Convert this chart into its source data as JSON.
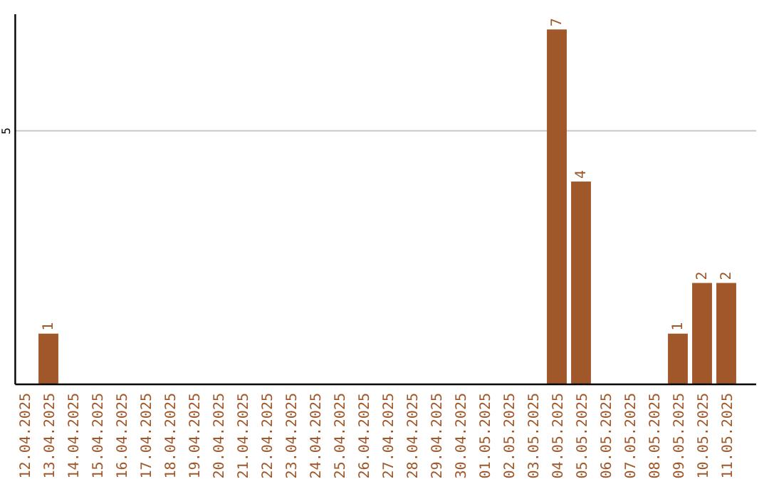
{
  "chart_data": {
    "type": "bar",
    "categories": [
      "12.04.2025",
      "13.04.2025",
      "14.04.2025",
      "15.04.2025",
      "16.04.2025",
      "17.04.2025",
      "18.04.2025",
      "19.04.2025",
      "20.04.2025",
      "21.04.2025",
      "22.04.2025",
      "23.04.2025",
      "24.04.2025",
      "25.04.2025",
      "26.04.2025",
      "27.04.2025",
      "28.04.2025",
      "29.04.2025",
      "30.04.2025",
      "01.05.2025",
      "02.05.2025",
      "03.05.2025",
      "04.05.2025",
      "05.05.2025",
      "06.05.2025",
      "07.05.2025",
      "08.05.2025",
      "09.05.2025",
      "10.05.2025",
      "11.05.2025"
    ],
    "values": [
      0,
      1,
      0,
      0,
      0,
      0,
      0,
      0,
      0,
      0,
      0,
      0,
      0,
      0,
      0,
      0,
      0,
      0,
      0,
      0,
      0,
      0,
      7,
      4,
      0,
      0,
      0,
      1,
      2,
      2
    ],
    "value_labels": [
      null,
      "1",
      null,
      null,
      null,
      null,
      null,
      null,
      null,
      null,
      null,
      null,
      null,
      null,
      null,
      null,
      null,
      null,
      null,
      null,
      null,
      null,
      "7",
      "4",
      null,
      null,
      null,
      "1",
      "2",
      "2"
    ],
    "color": "#a0582a",
    "ylim": [
      0,
      7.3
    ],
    "yticks": [
      5
    ],
    "grid": "y"
  }
}
